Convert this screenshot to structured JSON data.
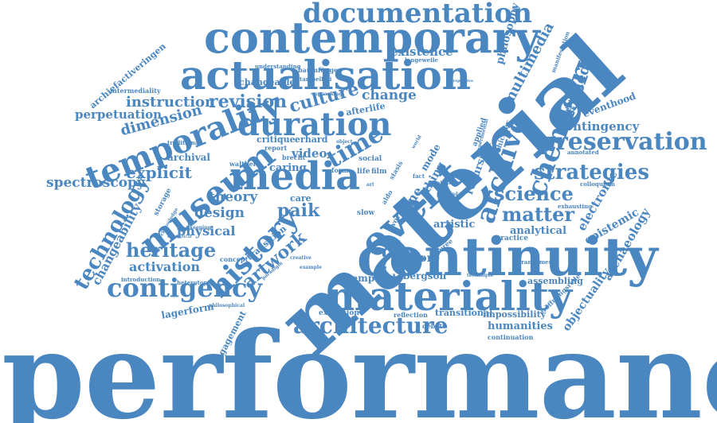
{
  "colors": {
    "word": "#4a86c0",
    "background": "#ffffff"
  },
  "words": [
    "performance",
    "material",
    "continuity",
    "contemporary",
    "actualisation",
    "materiality",
    "documentation",
    "media",
    "museum",
    "duration",
    "temporality",
    "event",
    "preservation",
    "archive",
    "chemistry",
    "history",
    "architecture",
    "contigency",
    "strategies",
    "science",
    "time",
    "technology",
    "artwork",
    "culture",
    "revision",
    "matter",
    "heritage",
    "multimedia",
    "explicit",
    "spectroscopy",
    "instruction",
    "dimension",
    "perpetuation",
    "existence",
    "intermedia",
    "philosophy",
    "contingency",
    "electronic",
    "archaeology",
    "epistemic",
    "objectuality",
    "humanities",
    "design",
    "theory",
    "physical",
    "activation",
    "changeability",
    "engagement",
    "lagerform",
    "transitional",
    "impossibility",
    "bergson",
    "score",
    "temporal",
    "exhibition",
    "reflection",
    "assembling",
    "analytical",
    "practice",
    "artistic",
    "recursion",
    "eventhood",
    "paik",
    "change",
    "video",
    "caring",
    "archival",
    "critique",
    "erhard",
    "report",
    "brecht",
    "walther",
    "june",
    "thing",
    "mode",
    "applied",
    "vehicular",
    "constellation",
    "annotated",
    "colloquium",
    "exhausting",
    "manifestation",
    "arrangement",
    "eröffnungsrede",
    "continuation",
    "debate",
    "heterotopia",
    "introduction",
    "philosophical",
    "creative",
    "example",
    "technique",
    "durée",
    "research",
    "writing",
    "slow",
    "care",
    "film",
    "life",
    "form",
    "social",
    "stasis",
    "world",
    "fact",
    "aldo",
    "work",
    "traditional",
    "afterlife",
    "object",
    "art",
    "transition",
    "concept",
    "storage",
    "intermediality",
    "changeable",
    "understanding",
    "baumfänger",
    "tambellini",
    "langeweile",
    "archiefactiveringen",
    "unpacking",
    "perspective",
    "experimental",
    "minding",
    "particular",
    "keeping",
    "acknowledge",
    "paradigm",
    "theoretical"
  ]
}
